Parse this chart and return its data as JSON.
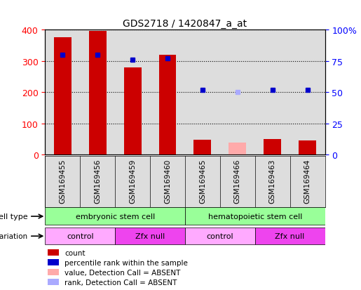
{
  "title": "GDS2718 / 1420847_a_at",
  "samples": [
    "GSM169455",
    "GSM169456",
    "GSM169459",
    "GSM169460",
    "GSM169465",
    "GSM169466",
    "GSM169463",
    "GSM169464"
  ],
  "bar_values": [
    375,
    395,
    278,
    320,
    48,
    38,
    50,
    45
  ],
  "bar_colors": [
    "#cc0000",
    "#cc0000",
    "#cc0000",
    "#cc0000",
    "#cc0000",
    "#ffaaaa",
    "#cc0000",
    "#cc0000"
  ],
  "rank_values": [
    80,
    80,
    76,
    77,
    52,
    50,
    52,
    52
  ],
  "rank_colors": [
    "#0000cc",
    "#0000cc",
    "#0000cc",
    "#0000cc",
    "#0000cc",
    "#aaaaff",
    "#0000cc",
    "#0000cc"
  ],
  "ylim_left": [
    0,
    400
  ],
  "ylim_right": [
    0,
    100
  ],
  "yticks_left": [
    0,
    100,
    200,
    300,
    400
  ],
  "yticks_right": [
    0,
    25,
    50,
    75,
    100
  ],
  "cell_type_labels": [
    "embryonic stem cell",
    "hematopoietic stem cell"
  ],
  "cell_type_spans": [
    0,
    4,
    8
  ],
  "cell_type_color": "#99ff99",
  "genotype_labels": [
    "control",
    "Zfx null",
    "control",
    "Zfx null"
  ],
  "genotype_spans": [
    0,
    2,
    4,
    6,
    8
  ],
  "genotype_colors": [
    "#ffaaff",
    "#ee44ee",
    "#ffaaff",
    "#ee44ee"
  ],
  "legend_items": [
    {
      "label": "count",
      "color": "#cc0000"
    },
    {
      "label": "percentile rank within the sample",
      "color": "#0000cc"
    },
    {
      "label": "value, Detection Call = ABSENT",
      "color": "#ffaaaa"
    },
    {
      "label": "rank, Detection Call = ABSENT",
      "color": "#aaaaff"
    }
  ],
  "bg_color": "#dddddd",
  "bar_width": 0.5,
  "rank_marker_size": 5
}
